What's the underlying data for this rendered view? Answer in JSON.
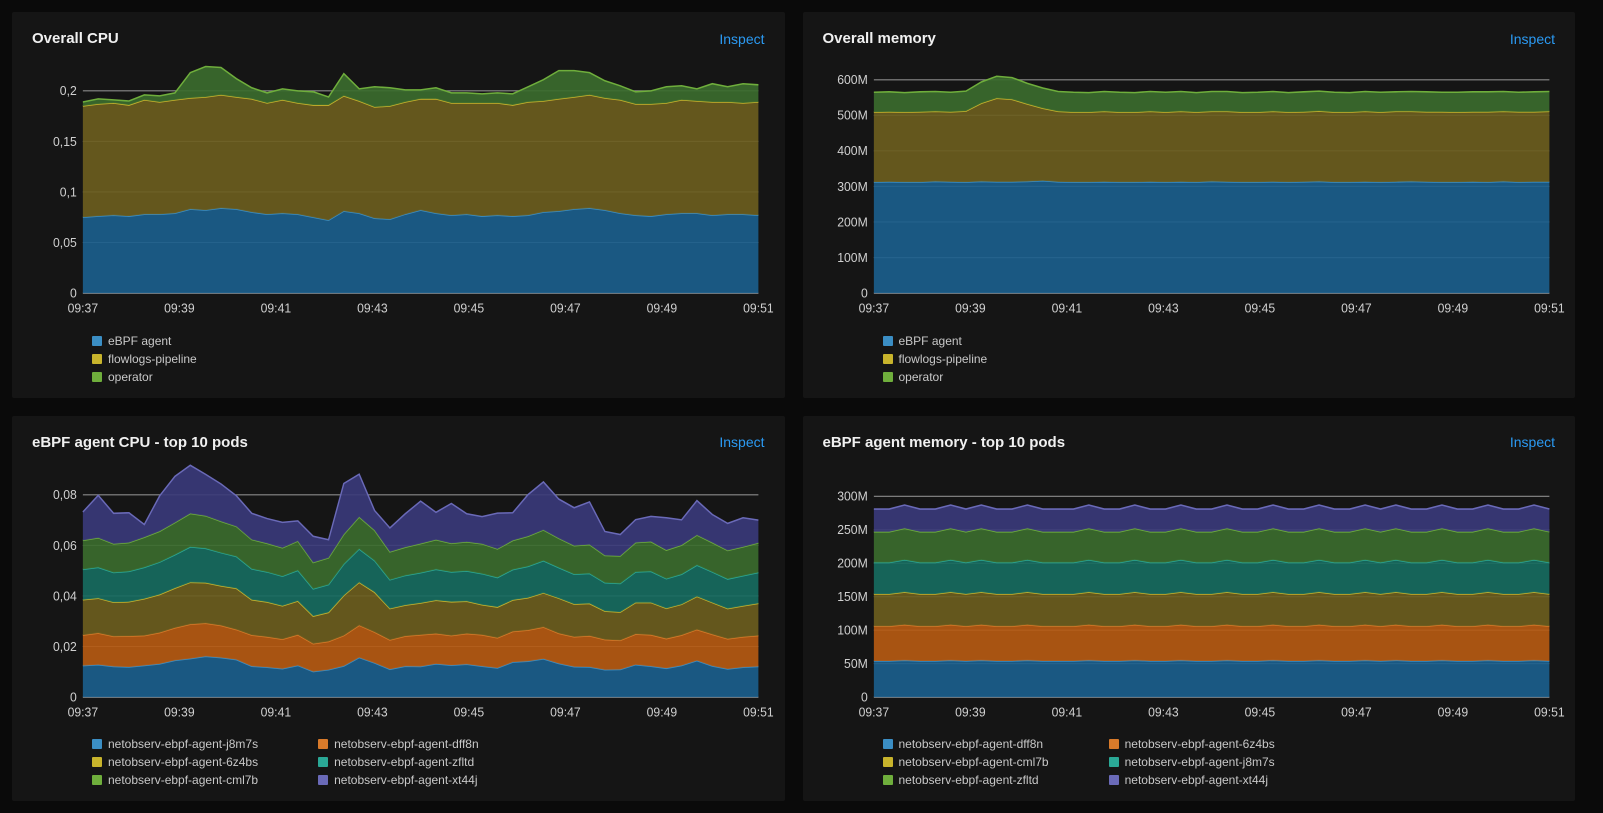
{
  "inspect_label": "Inspect",
  "x_ticks": [
    "09:37",
    "09:39",
    "09:41",
    "09:43",
    "09:45",
    "09:47",
    "09:49",
    "09:51"
  ],
  "panels": [
    {
      "id": "overall-cpu",
      "title": "Overall CPU",
      "y": {
        "min": 0,
        "max": 0.225,
        "ticks": [
          0,
          0.05,
          0.1,
          0.15,
          0.2
        ],
        "labels": [
          "0",
          "0,05",
          "0,1",
          "0,15",
          "0,2"
        ]
      },
      "legend_style": "col1",
      "series": [
        {
          "name": "eBPF agent",
          "color": "#1b5e8c",
          "stroke": "#3b8ec4",
          "data": [
            0.075,
            0.076,
            0.077,
            0.076,
            0.078,
            0.078,
            0.079,
            0.083,
            0.082,
            0.084,
            0.083,
            0.08,
            0.078,
            0.079,
            0.078,
            0.075,
            0.072,
            0.081,
            0.079,
            0.074,
            0.073,
            0.078,
            0.082,
            0.079,
            0.077,
            0.078,
            0.076,
            0.077,
            0.076,
            0.077,
            0.08,
            0.081,
            0.083,
            0.084,
            0.082,
            0.079,
            0.077,
            0.076,
            0.078,
            0.079,
            0.079,
            0.077,
            0.078,
            0.078,
            0.077
          ]
        },
        {
          "name": "flowlogs-pipeline",
          "color": "#6b5d1e",
          "stroke": "#c8b42c",
          "data": [
            0.11,
            0.111,
            0.111,
            0.11,
            0.113,
            0.111,
            0.112,
            0.11,
            0.112,
            0.112,
            0.111,
            0.112,
            0.11,
            0.112,
            0.11,
            0.111,
            0.114,
            0.114,
            0.111,
            0.11,
            0.112,
            0.111,
            0.11,
            0.113,
            0.111,
            0.11,
            0.112,
            0.111,
            0.11,
            0.112,
            0.11,
            0.111,
            0.111,
            0.112,
            0.111,
            0.112,
            0.11,
            0.111,
            0.11,
            0.112,
            0.111,
            0.112,
            0.111,
            0.11,
            0.112
          ]
        },
        {
          "name": "operator",
          "color": "#3b6b2e",
          "stroke": "#6fae3c",
          "data": [
            0.004,
            0.005,
            0.003,
            0.004,
            0.005,
            0.006,
            0.007,
            0.025,
            0.03,
            0.027,
            0.018,
            0.011,
            0.01,
            0.011,
            0.012,
            0.013,
            0.008,
            0.022,
            0.012,
            0.02,
            0.018,
            0.012,
            0.009,
            0.011,
            0.01,
            0.01,
            0.009,
            0.01,
            0.011,
            0.015,
            0.021,
            0.028,
            0.026,
            0.022,
            0.017,
            0.014,
            0.012,
            0.013,
            0.016,
            0.014,
            0.012,
            0.018,
            0.015,
            0.019,
            0.017
          ]
        }
      ]
    },
    {
      "id": "overall-memory",
      "title": "Overall memory",
      "y": {
        "min": 0,
        "max": 640,
        "ticks": [
          0,
          100,
          200,
          300,
          400,
          500,
          600
        ],
        "labels": [
          "0",
          "100M",
          "200M",
          "300M",
          "400M",
          "500M",
          "600M"
        ]
      },
      "legend_style": "col1",
      "series": [
        {
          "name": "eBPF agent",
          "color": "#1b5e8c",
          "stroke": "#3b8ec4",
          "data": [
            312,
            313,
            312,
            312,
            314,
            313,
            312,
            314,
            313,
            313,
            314,
            316,
            313,
            312,
            312,
            313,
            312,
            312,
            313,
            312,
            313,
            312,
            314,
            313,
            312,
            312,
            313,
            312,
            313,
            314,
            312,
            312,
            313,
            312,
            313,
            314,
            313,
            312,
            312,
            313,
            312,
            314,
            312,
            313,
            313
          ]
        },
        {
          "name": "flowlogs-pipeline",
          "color": "#6b5d1e",
          "stroke": "#c8b42c",
          "data": [
            197,
            197,
            197,
            198,
            197,
            197,
            200,
            220,
            235,
            232,
            218,
            204,
            198,
            197,
            197,
            198,
            197,
            197,
            198,
            197,
            198,
            197,
            197,
            198,
            197,
            197,
            198,
            197,
            197,
            198,
            197,
            197,
            198,
            197,
            198,
            197,
            197,
            198,
            197,
            197,
            198,
            197,
            198,
            197,
            198
          ]
        },
        {
          "name": "operator",
          "color": "#3b6b2e",
          "stroke": "#6fae3c",
          "data": [
            56,
            56,
            55,
            56,
            56,
            55,
            56,
            60,
            62,
            61,
            58,
            57,
            56,
            56,
            55,
            56,
            56,
            55,
            56,
            56,
            56,
            55,
            56,
            56,
            55,
            56,
            56,
            55,
            56,
            56,
            56,
            55,
            56,
            56,
            55,
            56,
            56,
            55,
            56,
            56,
            56,
            56,
            55,
            56,
            56
          ]
        }
      ]
    },
    {
      "id": "ebpf-cpu",
      "title": "eBPF agent CPU - top 10 pods",
      "y": {
        "min": 0,
        "max": 0.09,
        "ticks": [
          0,
          0.02,
          0.04,
          0.06,
          0.08
        ],
        "labels": [
          "0",
          "0,02",
          "0,04",
          "0,06",
          "0,08"
        ]
      },
      "legend_style": "col2",
      "series": [
        {
          "name": "netobserv-ebpf-agent-j8m7s",
          "color": "#1b5e8c",
          "stroke": "#3b8ec4",
          "data": [
            0.0124,
            0.0128,
            0.0121,
            0.0119,
            0.0125,
            0.0131,
            0.0145,
            0.0152,
            0.0161,
            0.0156,
            0.0148,
            0.0122,
            0.0118,
            0.0112,
            0.0125,
            0.0101,
            0.0108,
            0.0123,
            0.0156,
            0.0135,
            0.011,
            0.0122,
            0.0121,
            0.0131,
            0.0126,
            0.013,
            0.0122,
            0.0115,
            0.0138,
            0.0142,
            0.0151,
            0.0133,
            0.012,
            0.0119,
            0.0108,
            0.0109,
            0.0128,
            0.0122,
            0.0114,
            0.0125,
            0.0144,
            0.0123,
            0.0111,
            0.0118,
            0.0121
          ]
        },
        {
          "name": "netobserv-ebpf-agent-dff8n",
          "color": "#b55a12",
          "stroke": "#d87a2a",
          "data": [
            0.0121,
            0.0125,
            0.0119,
            0.0122,
            0.0118,
            0.0124,
            0.0129,
            0.0136,
            0.0131,
            0.0127,
            0.0119,
            0.0123,
            0.012,
            0.0117,
            0.0121,
            0.011,
            0.0112,
            0.012,
            0.0128,
            0.0122,
            0.0116,
            0.0119,
            0.0125,
            0.012,
            0.0117,
            0.0121,
            0.0124,
            0.0119,
            0.0121,
            0.0123,
            0.0126,
            0.0119,
            0.0118,
            0.0123,
            0.0119,
            0.0115,
            0.0121,
            0.0124,
            0.0117,
            0.012,
            0.0123,
            0.0125,
            0.0119,
            0.012,
            0.0122
          ]
        },
        {
          "name": "netobserv-ebpf-agent-6z4bs",
          "color": "#6b5d1e",
          "stroke": "#c8b42c",
          "data": [
            0.014,
            0.0138,
            0.0135,
            0.0136,
            0.0146,
            0.0151,
            0.0157,
            0.0166,
            0.016,
            0.0157,
            0.0163,
            0.014,
            0.0138,
            0.0132,
            0.0134,
            0.0109,
            0.0115,
            0.0159,
            0.017,
            0.0158,
            0.0124,
            0.0123,
            0.0126,
            0.0132,
            0.0134,
            0.0128,
            0.0119,
            0.0122,
            0.0125,
            0.0128,
            0.0135,
            0.0139,
            0.013,
            0.0128,
            0.0113,
            0.0112,
            0.0125,
            0.0128,
            0.012,
            0.0122,
            0.0131,
            0.0126,
            0.012,
            0.0123,
            0.0128
          ]
        },
        {
          "name": "netobserv-ebpf-agent-zfltd",
          "color": "#176b5f",
          "stroke": "#2aa896",
          "data": [
            0.012,
            0.0122,
            0.0118,
            0.012,
            0.0124,
            0.0128,
            0.0132,
            0.014,
            0.0136,
            0.0131,
            0.0126,
            0.0122,
            0.0119,
            0.0117,
            0.0121,
            0.0108,
            0.011,
            0.0124,
            0.0132,
            0.0125,
            0.0114,
            0.0117,
            0.012,
            0.0122,
            0.0118,
            0.012,
            0.0123,
            0.0117,
            0.012,
            0.0124,
            0.0127,
            0.0121,
            0.0118,
            0.0119,
            0.0112,
            0.0113,
            0.0121,
            0.0123,
            0.0117,
            0.0119,
            0.0124,
            0.0121,
            0.0117,
            0.0119,
            0.0122
          ]
        },
        {
          "name": "netobserv-ebpf-agent-cml7b",
          "color": "#3b6b2e",
          "stroke": "#6fae3c",
          "data": [
            0.0115,
            0.0117,
            0.0113,
            0.0114,
            0.0119,
            0.0122,
            0.0127,
            0.0132,
            0.0129,
            0.0124,
            0.0119,
            0.0116,
            0.0113,
            0.0112,
            0.0116,
            0.0104,
            0.0106,
            0.0118,
            0.0126,
            0.012,
            0.011,
            0.0112,
            0.0115,
            0.0117,
            0.0113,
            0.0115,
            0.0118,
            0.0113,
            0.0115,
            0.0119,
            0.0122,
            0.0116,
            0.0113,
            0.0114,
            0.0108,
            0.0109,
            0.0116,
            0.0118,
            0.0113,
            0.0115,
            0.0119,
            0.0116,
            0.0113,
            0.0114,
            0.0117
          ]
        },
        {
          "name": "netobserv-ebpf-agent-xt44j",
          "color": "#3a3a7a",
          "stroke": "#6a6ab8",
          "data": [
            0.0112,
            0.0168,
            0.0121,
            0.0118,
            0.0051,
            0.014,
            0.0183,
            0.0191,
            0.0164,
            0.0148,
            0.0121,
            0.0104,
            0.0098,
            0.0101,
            0.008,
            0.0104,
            0.0071,
            0.0201,
            0.017,
            0.0078,
            0.0095,
            0.0132,
            0.0168,
            0.0109,
            0.0158,
            0.0111,
            0.0108,
            0.0142,
            0.011,
            0.0165,
            0.019,
            0.0155,
            0.015,
            0.0169,
            0.0095,
            0.0085,
            0.0091,
            0.01,
            0.0128,
            0.01,
            0.0136,
            0.0111,
            0.0107,
            0.0115,
            0.009
          ]
        }
      ]
    },
    {
      "id": "ebpf-memory",
      "title": "eBPF agent memory - top 10 pods",
      "y": {
        "min": 0,
        "max": 340,
        "ticks": [
          0,
          50,
          100,
          150,
          200,
          250,
          300
        ],
        "labels": [
          "0",
          "50M",
          "100M",
          "150M",
          "200M",
          "250M",
          "300M"
        ]
      },
      "legend_style": "col2",
      "series": [
        {
          "name": "netobserv-ebpf-agent-dff8n",
          "color": "#1b5e8c",
          "stroke": "#3b8ec4",
          "data": [
            54,
            54,
            55,
            54,
            54,
            55,
            54,
            55,
            54,
            54,
            55,
            54,
            54,
            54,
            55,
            54,
            54,
            55,
            54,
            54,
            55,
            54,
            54,
            55,
            54,
            54,
            55,
            54,
            54,
            55,
            54,
            54,
            55,
            54,
            55,
            54,
            54,
            55,
            54,
            54,
            55,
            54,
            54,
            55,
            54
          ]
        },
        {
          "name": "netobserv-ebpf-agent-6z4bs",
          "color": "#b55a12",
          "stroke": "#d87a2a",
          "data": [
            52,
            52,
            53,
            52,
            52,
            53,
            52,
            53,
            52,
            52,
            53,
            52,
            52,
            52,
            53,
            52,
            52,
            53,
            52,
            52,
            53,
            52,
            52,
            53,
            52,
            52,
            53,
            52,
            52,
            53,
            52,
            52,
            53,
            52,
            53,
            52,
            52,
            53,
            52,
            52,
            53,
            52,
            52,
            53,
            52
          ]
        },
        {
          "name": "netobserv-ebpf-agent-cml7b",
          "color": "#6b5d1e",
          "stroke": "#c8b42c",
          "data": [
            48,
            48,
            49,
            48,
            48,
            49,
            48,
            49,
            48,
            48,
            49,
            48,
            48,
            48,
            49,
            48,
            48,
            49,
            48,
            48,
            49,
            48,
            48,
            49,
            48,
            48,
            49,
            48,
            48,
            49,
            48,
            48,
            49,
            48,
            49,
            48,
            48,
            49,
            48,
            48,
            49,
            48,
            48,
            49,
            48
          ]
        },
        {
          "name": "netobserv-ebpf-agent-j8m7s",
          "color": "#176b5f",
          "stroke": "#2aa896",
          "data": [
            47,
            47,
            48,
            47,
            47,
            48,
            47,
            48,
            47,
            47,
            48,
            47,
            47,
            47,
            48,
            47,
            47,
            48,
            47,
            47,
            48,
            47,
            47,
            48,
            47,
            47,
            48,
            47,
            47,
            48,
            47,
            47,
            48,
            47,
            48,
            47,
            47,
            48,
            47,
            47,
            48,
            47,
            47,
            48,
            47
          ]
        },
        {
          "name": "netobserv-ebpf-agent-zfltd",
          "color": "#3b6b2e",
          "stroke": "#6fae3c",
          "data": [
            46,
            46,
            47,
            46,
            46,
            47,
            46,
            47,
            46,
            46,
            47,
            46,
            46,
            46,
            47,
            46,
            46,
            47,
            46,
            46,
            47,
            46,
            46,
            47,
            46,
            46,
            47,
            46,
            46,
            47,
            46,
            46,
            47,
            46,
            47,
            46,
            46,
            47,
            46,
            46,
            47,
            46,
            46,
            47,
            46
          ]
        },
        {
          "name": "netobserv-ebpf-agent-xt44j",
          "color": "#3a3a7a",
          "stroke": "#6a6ab8",
          "data": [
            34,
            34,
            35,
            34,
            34,
            35,
            34,
            35,
            34,
            34,
            35,
            34,
            34,
            34,
            35,
            34,
            34,
            35,
            34,
            34,
            35,
            34,
            34,
            35,
            34,
            34,
            35,
            34,
            34,
            35,
            34,
            34,
            35,
            34,
            35,
            34,
            34,
            35,
            34,
            34,
            35,
            34,
            34,
            35,
            34
          ]
        }
      ]
    }
  ]
}
